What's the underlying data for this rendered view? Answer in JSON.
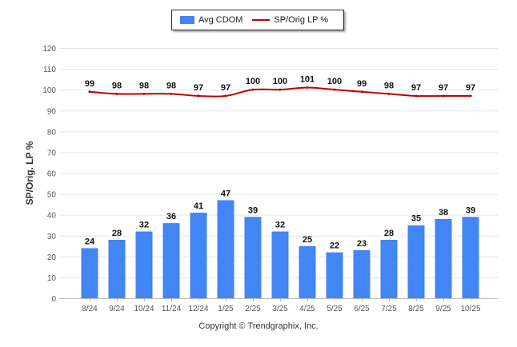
{
  "legend": {
    "bar_label": "Avg CDOM",
    "line_label": "SP/Orig LP %"
  },
  "copyright": "Copyright © Trendgraphix, Inc.",
  "colors": {
    "bar": "#4285f4",
    "line": "#c00000",
    "grid": "#e6e6e6",
    "axis_text": "#555555",
    "label_text": "#111111"
  },
  "chart_data": {
    "type": "bar",
    "title": "",
    "xlabel": "",
    "ylabel": "SP/Orig. LP %",
    "ylim": [
      0,
      120
    ],
    "y_ticks": [
      0,
      10,
      20,
      30,
      40,
      50,
      60,
      70,
      80,
      90,
      100,
      110,
      120
    ],
    "grid": true,
    "legend_position": "top-center",
    "categories": [
      "8/24",
      "9/24",
      "10/24",
      "11/24",
      "12/24",
      "1/25",
      "2/25",
      "3/25",
      "4/25",
      "5/25",
      "6/25",
      "7/25",
      "8/25",
      "9/25",
      "10/25"
    ],
    "series": [
      {
        "name": "Avg CDOM",
        "type": "bar",
        "values": [
          24,
          28,
          32,
          36,
          41,
          47,
          39,
          32,
          25,
          22,
          23,
          28,
          35,
          38,
          39
        ]
      },
      {
        "name": "SP/Orig LP %",
        "type": "line",
        "values": [
          99,
          98,
          98,
          98,
          97,
          97,
          100,
          100,
          101,
          100,
          99,
          98,
          97,
          97,
          97
        ]
      }
    ]
  }
}
